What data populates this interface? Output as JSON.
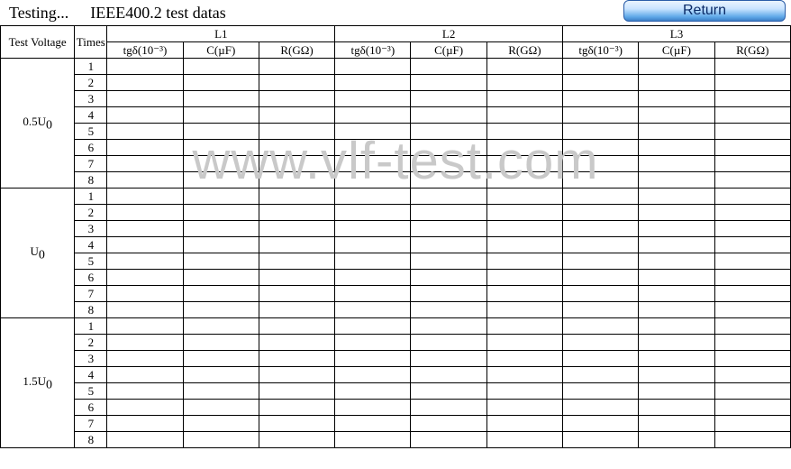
{
  "header": {
    "status": "Testing...",
    "title": "IEEE400.2 test datas",
    "return_label": "Return"
  },
  "table": {
    "col_voltage": "Test Voltage",
    "col_times": "Times",
    "phases": [
      "L1",
      "L2",
      "L3"
    ],
    "subcols": {
      "tg": "tgδ(10⁻³)",
      "c": "C(µF)",
      "r": "R(GΩ)"
    },
    "voltage_groups": [
      {
        "label_html": "0.5U<sub>0</sub>",
        "rows": 8
      },
      {
        "label_html": "U<sub>0</sub>",
        "rows": 8
      },
      {
        "label_html": "1.5U<sub>0</sub>",
        "rows": 8
      }
    ]
  },
  "watermark": "www.vlf-test.com"
}
